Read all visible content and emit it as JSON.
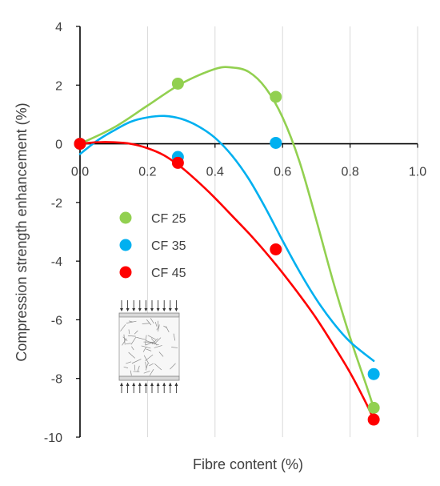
{
  "chart_data": {
    "type": "scatter",
    "xlabel": "Fibre content (%)",
    "ylabel": "Compression strength enhancement (%)",
    "xlim": [
      0.0,
      1.0
    ],
    "ylim": [
      -10,
      4
    ],
    "x_ticks": [
      "0.0",
      "0.2",
      "0.4",
      "0.6",
      "0.8",
      "1.0"
    ],
    "y_ticks": [
      "4",
      "2",
      "0",
      "-2",
      "-4",
      "-6",
      "-8",
      "-10"
    ],
    "x_tick_values": [
      0.0,
      0.2,
      0.4,
      0.6,
      0.8,
      1.0
    ],
    "y_tick_values": [
      4,
      2,
      0,
      -2,
      -4,
      -6,
      -8,
      -10
    ],
    "grid": "vertical",
    "legend_position": "left",
    "trendline": "polynomial",
    "series": [
      {
        "name": "CF 25",
        "color": "#92D050",
        "points": [
          [
            0.0,
            0.0
          ],
          [
            0.29,
            2.05
          ],
          [
            0.58,
            1.6
          ],
          [
            0.87,
            -9.0
          ]
        ],
        "curve": [
          [
            0.0,
            0.0
          ],
          [
            0.1,
            0.55
          ],
          [
            0.2,
            1.3
          ],
          [
            0.3,
            2.05
          ],
          [
            0.4,
            2.55
          ],
          [
            0.45,
            2.6
          ],
          [
            0.5,
            2.45
          ],
          [
            0.55,
            1.9
          ],
          [
            0.6,
            0.9
          ],
          [
            0.65,
            -0.6
          ],
          [
            0.7,
            -2.6
          ],
          [
            0.75,
            -4.7
          ],
          [
            0.8,
            -6.6
          ],
          [
            0.85,
            -8.3
          ],
          [
            0.87,
            -9.0
          ]
        ]
      },
      {
        "name": "CF 35",
        "color": "#00B0F0",
        "points": [
          [
            0.0,
            0.0
          ],
          [
            0.29,
            -0.45
          ],
          [
            0.58,
            0.03
          ],
          [
            0.87,
            -7.85
          ]
        ],
        "curve": [
          [
            0.0,
            -0.35
          ],
          [
            0.05,
            0.1
          ],
          [
            0.1,
            0.45
          ],
          [
            0.15,
            0.75
          ],
          [
            0.2,
            0.9
          ],
          [
            0.25,
            0.95
          ],
          [
            0.3,
            0.85
          ],
          [
            0.35,
            0.6
          ],
          [
            0.4,
            0.2
          ],
          [
            0.45,
            -0.4
          ],
          [
            0.5,
            -1.2
          ],
          [
            0.55,
            -2.2
          ],
          [
            0.6,
            -3.3
          ],
          [
            0.65,
            -4.35
          ],
          [
            0.7,
            -5.3
          ],
          [
            0.75,
            -6.1
          ],
          [
            0.8,
            -6.75
          ],
          [
            0.87,
            -7.4
          ]
        ]
      },
      {
        "name": "CF 45",
        "color": "#FF0000",
        "points": [
          [
            0.0,
            0.0
          ],
          [
            0.29,
            -0.65
          ],
          [
            0.58,
            -3.6
          ],
          [
            0.87,
            -9.4
          ]
        ],
        "curve": [
          [
            0.0,
            0.0
          ],
          [
            0.05,
            0.05
          ],
          [
            0.1,
            0.05
          ],
          [
            0.15,
            0.0
          ],
          [
            0.2,
            -0.15
          ],
          [
            0.25,
            -0.4
          ],
          [
            0.3,
            -0.8
          ],
          [
            0.35,
            -1.3
          ],
          [
            0.4,
            -1.85
          ],
          [
            0.45,
            -2.45
          ],
          [
            0.5,
            -3.05
          ],
          [
            0.55,
            -3.7
          ],
          [
            0.6,
            -4.4
          ],
          [
            0.65,
            -5.15
          ],
          [
            0.7,
            -5.95
          ],
          [
            0.75,
            -6.85
          ],
          [
            0.8,
            -7.8
          ],
          [
            0.85,
            -8.9
          ],
          [
            0.87,
            -9.4
          ]
        ]
      }
    ]
  }
}
